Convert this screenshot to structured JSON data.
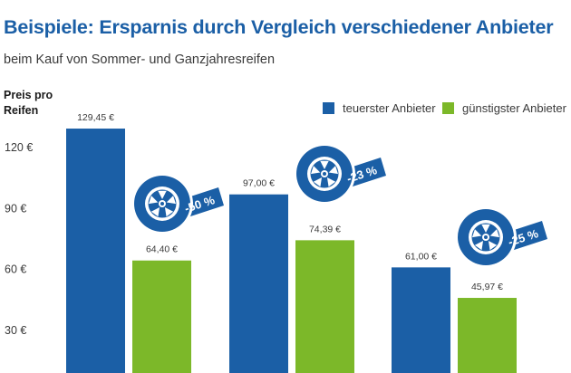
{
  "title": "Beispiele: Ersparnis durch Vergleich verschiedener Anbieter",
  "subtitle": "beim Kauf von Sommer- und Ganzjahresreifen",
  "colors": {
    "title": "#1b5fa6",
    "teuer": "#1b5fa6",
    "guenstig": "#7cb829"
  },
  "chart_data": {
    "type": "bar",
    "title": "Beispiele: Ersparnis durch Vergleich verschiedener Anbieter",
    "subtitle": "beim Kauf von Sommer- und Ganzjahresreifen",
    "ylabel": "Preis pro Reifen",
    "xlabel": "",
    "categories": [
      "",
      "",
      ""
    ],
    "yticks": [
      30,
      60,
      90,
      120
    ],
    "ytick_labels": [
      "30 €",
      "60 €",
      "90 €",
      "120 €"
    ],
    "ylim": [
      0,
      135
    ],
    "grid": false,
    "legend_position": "top-right",
    "series": [
      {
        "name": "teuerster Anbieter",
        "color": "#1b5fa6",
        "values": [
          129.45,
          97.0,
          61.0
        ],
        "labels": [
          "129,45 €",
          "97,00 €",
          "61,00 €"
        ]
      },
      {
        "name": "günstigster Anbieter",
        "color": "#7cb829",
        "values": [
          64.4,
          74.39,
          45.97
        ],
        "labels": [
          "64,40 €",
          "74,39 €",
          "45,97 €"
        ]
      }
    ],
    "annotations": [
      {
        "category_index": 0,
        "text": "-50 %",
        "icon": "tire-tag-icon"
      },
      {
        "category_index": 1,
        "text": "-23 %",
        "icon": "tire-tag-icon"
      },
      {
        "category_index": 2,
        "text": "-25 %",
        "icon": "tire-tag-icon"
      }
    ]
  }
}
